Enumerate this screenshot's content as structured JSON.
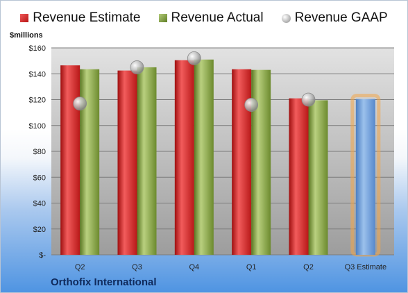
{
  "legend": {
    "estimate": "Revenue Estimate",
    "actual": "Revenue Actual",
    "gaap": "Revenue GAAP"
  },
  "unit_label": "$millions",
  "company": "Orthofix International",
  "colors": {
    "estimate": "#cc1f1f",
    "actual": "#7f9c3c",
    "gaap": "#b5b5b5",
    "future_estimate": "#6f9fd8",
    "future_glow": "#f2a648"
  },
  "chart_data": {
    "type": "bar",
    "categories": [
      "Q2",
      "Q3",
      "Q4",
      "Q1",
      "Q2",
      "Q3 Estimate"
    ],
    "series": [
      {
        "name": "Revenue Estimate",
        "values": [
          146.5,
          142.5,
          150.5,
          143.5,
          121.0,
          120.5
        ]
      },
      {
        "name": "Revenue Actual",
        "values": [
          143.5,
          145.0,
          151.0,
          143.0,
          119.5,
          null
        ]
      },
      {
        "name": "Revenue GAAP",
        "values": [
          117.0,
          145.0,
          152.0,
          116.0,
          120.0,
          null
        ]
      }
    ],
    "ylabel": "$millions",
    "ylim": [
      0,
      160
    ],
    "yticks": [
      0,
      20,
      40,
      60,
      80,
      100,
      120,
      140,
      160
    ],
    "ytick_labels": [
      "$-",
      "$20",
      "$40",
      "$60",
      "$80",
      "$100",
      "$120",
      "$140",
      "$160"
    ],
    "grid": true,
    "legend_position": "top"
  }
}
